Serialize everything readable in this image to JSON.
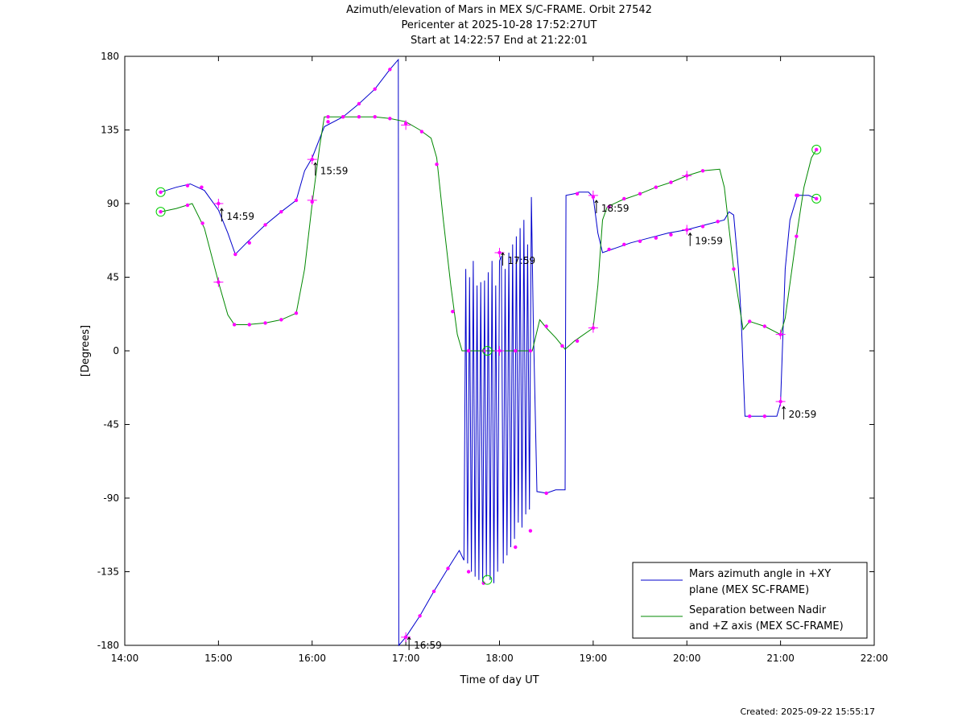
{
  "title": {
    "line1": "Azimuth/elevation of Mars in MEX S/C-FRAME.  Orbit 27542",
    "line2": "Pericenter at 2025-10-28 17:52:27UT",
    "line3": "Start at 14:22:57 End at 21:22:01"
  },
  "created": "Created: 2025-09-22 15:55:17",
  "chart_data": {
    "type": "line",
    "xlabel": "Time of day UT",
    "ylabel": "[Degrees]",
    "xlim": [
      14.0,
      22.0
    ],
    "ylim": [
      -180,
      180
    ],
    "xticks": [
      14,
      15,
      16,
      17,
      18,
      19,
      20,
      21,
      22
    ],
    "xtick_labels": [
      "14:00",
      "15:00",
      "16:00",
      "17:00",
      "18:00",
      "19:00",
      "20:00",
      "21:00",
      "22:00"
    ],
    "yticks": [
      180,
      135,
      90,
      45,
      0,
      -45,
      -90,
      -135,
      -180
    ],
    "ytick_labels": [
      "180",
      "135",
      "90",
      "45",
      "0",
      "-45",
      "-90",
      "-135",
      "-180"
    ],
    "grid": false,
    "legend_position": "bottom-right",
    "series": [
      {
        "name": "Mars azimuth angle in +XY plane (MEX SC-FRAME)",
        "legend_lines": [
          "Mars azimuth angle in +XY",
          "plane (MEX SC-FRAME)"
        ],
        "color": "#0000cc",
        "points": [
          [
            14.383,
            97
          ],
          [
            14.55,
            100
          ],
          [
            14.7,
            102
          ],
          [
            14.85,
            98
          ],
          [
            15.0,
            86
          ],
          [
            15.1,
            72
          ],
          [
            15.18,
            59
          ],
          [
            15.3,
            66
          ],
          [
            15.5,
            77
          ],
          [
            15.67,
            85
          ],
          [
            15.83,
            92
          ],
          [
            15.92,
            110
          ],
          [
            16.0,
            118
          ],
          [
            16.13,
            137
          ],
          [
            16.33,
            143
          ],
          [
            16.5,
            151
          ],
          [
            16.67,
            160
          ],
          [
            16.83,
            172
          ],
          [
            16.92,
            178
          ],
          [
            16.925,
            -180
          ],
          [
            17.0,
            -175
          ],
          [
            17.15,
            -162
          ],
          [
            17.3,
            -147
          ],
          [
            17.45,
            -133
          ],
          [
            17.57,
            -122
          ],
          [
            17.62,
            -128
          ],
          [
            17.64,
            50
          ],
          [
            17.66,
            -130
          ],
          [
            17.68,
            45
          ],
          [
            17.7,
            -135
          ],
          [
            17.72,
            55
          ],
          [
            17.74,
            -138
          ],
          [
            17.76,
            40
          ],
          [
            17.78,
            -140
          ],
          [
            17.8,
            42
          ],
          [
            17.82,
            -142
          ],
          [
            17.84,
            43
          ],
          [
            17.86,
            -138
          ],
          [
            17.88,
            48
          ],
          [
            17.9,
            -140
          ],
          [
            17.92,
            55
          ],
          [
            17.94,
            -142
          ],
          [
            17.96,
            40
          ],
          [
            17.98,
            -135
          ],
          [
            18.0,
            55
          ],
          [
            18.02,
            58
          ],
          [
            18.04,
            -130
          ],
          [
            18.06,
            50
          ],
          [
            18.08,
            -125
          ],
          [
            18.1,
            60
          ],
          [
            18.12,
            -120
          ],
          [
            18.14,
            65
          ],
          [
            18.16,
            -115
          ],
          [
            18.18,
            70
          ],
          [
            18.2,
            -105
          ],
          [
            18.22,
            75
          ],
          [
            18.24,
            -108
          ],
          [
            18.26,
            80
          ],
          [
            18.28,
            -100
          ],
          [
            18.3,
            65
          ],
          [
            18.32,
            -97
          ],
          [
            18.34,
            94
          ],
          [
            18.36,
            20
          ],
          [
            18.4,
            -86
          ],
          [
            18.5,
            -87
          ],
          [
            18.6,
            -85
          ],
          [
            18.7,
            -85
          ],
          [
            18.71,
            95
          ],
          [
            18.8,
            96
          ],
          [
            18.85,
            97
          ],
          [
            18.95,
            97
          ],
          [
            19.0,
            94
          ],
          [
            19.05,
            72
          ],
          [
            19.1,
            60
          ],
          [
            19.2,
            62
          ],
          [
            19.4,
            66
          ],
          [
            19.6,
            69
          ],
          [
            19.8,
            72
          ],
          [
            20.0,
            74
          ],
          [
            20.2,
            77
          ],
          [
            20.4,
            80
          ],
          [
            20.45,
            85
          ],
          [
            20.5,
            83
          ],
          [
            20.55,
            50
          ],
          [
            20.58,
            20
          ],
          [
            20.62,
            -40
          ],
          [
            20.7,
            -40
          ],
          [
            20.8,
            -40
          ],
          [
            20.9,
            -40
          ],
          [
            20.96,
            -40
          ],
          [
            21.0,
            -32
          ],
          [
            21.05,
            50
          ],
          [
            21.1,
            80
          ],
          [
            21.18,
            95
          ],
          [
            21.3,
            95
          ],
          [
            21.383,
            93
          ]
        ],
        "marker_points": [
          [
            14.383,
            97
          ],
          [
            14.67,
            101
          ],
          [
            14.82,
            100
          ],
          [
            15.0,
            90
          ],
          [
            15.18,
            59
          ],
          [
            15.33,
            66
          ],
          [
            15.5,
            77
          ],
          [
            15.67,
            85
          ],
          [
            15.83,
            92
          ],
          [
            16.0,
            117
          ],
          [
            16.17,
            143
          ],
          [
            16.33,
            143
          ],
          [
            16.5,
            151
          ],
          [
            16.67,
            160
          ],
          [
            16.83,
            172
          ],
          [
            17.0,
            -175
          ],
          [
            17.15,
            -162
          ],
          [
            17.3,
            -147
          ],
          [
            17.45,
            -133
          ],
          [
            17.67,
            -135
          ],
          [
            17.83,
            -142
          ],
          [
            18.0,
            60
          ],
          [
            18.17,
            -120
          ],
          [
            18.33,
            -110
          ],
          [
            18.5,
            -87
          ],
          [
            18.83,
            96
          ],
          [
            19.0,
            94
          ],
          [
            19.17,
            62
          ],
          [
            19.33,
            65
          ],
          [
            19.5,
            67
          ],
          [
            19.67,
            69
          ],
          [
            19.83,
            71
          ],
          [
            20.0,
            74
          ],
          [
            20.17,
            76
          ],
          [
            20.33,
            79
          ],
          [
            20.67,
            -40
          ],
          [
            20.83,
            -40
          ],
          [
            21.0,
            -31
          ],
          [
            21.17,
            95
          ],
          [
            21.383,
            93
          ]
        ]
      },
      {
        "name": "Separation between Nadir and +Z axis (MEX SC-FRAME)",
        "legend_lines": [
          "Separation between Nadir",
          "and +Z axis (MEX SC-FRAME)"
        ],
        "color": "#008800",
        "points": [
          [
            14.383,
            85
          ],
          [
            14.55,
            87
          ],
          [
            14.72,
            90
          ],
          [
            14.85,
            75
          ],
          [
            15.0,
            42
          ],
          [
            15.1,
            22
          ],
          [
            15.17,
            16
          ],
          [
            15.3,
            16
          ],
          [
            15.5,
            17
          ],
          [
            15.67,
            19
          ],
          [
            15.83,
            23
          ],
          [
            15.92,
            50
          ],
          [
            16.0,
            90
          ],
          [
            16.08,
            125
          ],
          [
            16.13,
            143
          ],
          [
            16.3,
            143
          ],
          [
            16.5,
            143
          ],
          [
            16.67,
            143
          ],
          [
            16.83,
            142
          ],
          [
            17.0,
            140
          ],
          [
            17.15,
            135
          ],
          [
            17.27,
            130
          ],
          [
            17.33,
            118
          ],
          [
            17.4,
            80
          ],
          [
            17.48,
            40
          ],
          [
            17.55,
            10
          ],
          [
            17.6,
            0
          ],
          [
            17.7,
            0
          ],
          [
            17.85,
            0
          ],
          [
            18.0,
            0
          ],
          [
            18.2,
            0
          ],
          [
            18.35,
            0
          ],
          [
            18.43,
            19
          ],
          [
            18.5,
            14
          ],
          [
            18.6,
            8
          ],
          [
            18.7,
            1
          ],
          [
            18.8,
            6
          ],
          [
            19.0,
            14
          ],
          [
            19.05,
            40
          ],
          [
            19.1,
            80
          ],
          [
            19.15,
            88
          ],
          [
            19.3,
            92
          ],
          [
            19.5,
            96
          ],
          [
            19.67,
            100
          ],
          [
            19.83,
            103
          ],
          [
            20.0,
            107
          ],
          [
            20.17,
            110
          ],
          [
            20.35,
            111
          ],
          [
            20.4,
            100
          ],
          [
            20.5,
            50
          ],
          [
            20.6,
            13
          ],
          [
            20.67,
            18
          ],
          [
            20.83,
            15
          ],
          [
            21.0,
            10
          ],
          [
            21.05,
            20
          ],
          [
            21.17,
            70
          ],
          [
            21.25,
            100
          ],
          [
            21.33,
            118
          ],
          [
            21.383,
            123
          ]
        ],
        "marker_points": [
          [
            14.383,
            85
          ],
          [
            14.67,
            89
          ],
          [
            14.83,
            78
          ],
          [
            15.0,
            42
          ],
          [
            15.17,
            16
          ],
          [
            15.33,
            16
          ],
          [
            15.5,
            17
          ],
          [
            15.67,
            19
          ],
          [
            15.83,
            23
          ],
          [
            16.0,
            91
          ],
          [
            16.17,
            140
          ],
          [
            16.33,
            143
          ],
          [
            16.5,
            143
          ],
          [
            16.67,
            143
          ],
          [
            16.83,
            142
          ],
          [
            17.0,
            139
          ],
          [
            17.17,
            134
          ],
          [
            17.33,
            114
          ],
          [
            17.5,
            24
          ],
          [
            17.67,
            0
          ],
          [
            17.83,
            0
          ],
          [
            18.0,
            0
          ],
          [
            18.17,
            0
          ],
          [
            18.33,
            0
          ],
          [
            18.5,
            15
          ],
          [
            18.67,
            3
          ],
          [
            18.83,
            6
          ],
          [
            19.0,
            14
          ],
          [
            19.17,
            88
          ],
          [
            19.33,
            93
          ],
          [
            19.5,
            96
          ],
          [
            19.67,
            100
          ],
          [
            19.83,
            103
          ],
          [
            20.0,
            107
          ],
          [
            20.17,
            110
          ],
          [
            20.5,
            50
          ],
          [
            20.67,
            18
          ],
          [
            20.83,
            15
          ],
          [
            21.0,
            10
          ],
          [
            21.17,
            70
          ],
          [
            21.183,
            95
          ],
          [
            21.383,
            123
          ]
        ]
      }
    ],
    "time_labels": [
      {
        "label": "14:59",
        "x": 15.0,
        "y": 84
      },
      {
        "label": "15:59",
        "x": 16.0,
        "y": 112
      },
      {
        "label": "16:59",
        "x": 17.0,
        "y": -178
      },
      {
        "label": "17:59",
        "x": 18.0,
        "y": 57
      },
      {
        "label": "18:59",
        "x": 19.0,
        "y": 89
      },
      {
        "label": "19:59",
        "x": 20.0,
        "y": 69
      },
      {
        "label": "20:59",
        "x": 21.0,
        "y": -37
      }
    ],
    "cross_markers": [
      [
        15.0,
        90
      ],
      [
        15.0,
        42
      ],
      [
        16.0,
        117
      ],
      [
        16.0,
        92
      ],
      [
        17.0,
        -175
      ],
      [
        17.0,
        138
      ],
      [
        18.0,
        60
      ],
      [
        18.0,
        0
      ],
      [
        19.0,
        95
      ],
      [
        19.0,
        14
      ],
      [
        20.0,
        74
      ],
      [
        20.0,
        107
      ],
      [
        21.0,
        -31
      ],
      [
        21.0,
        10
      ]
    ],
    "circle_markers": [
      [
        14.383,
        97
      ],
      [
        14.383,
        85
      ],
      [
        17.87,
        0
      ],
      [
        17.87,
        -140
      ],
      [
        21.383,
        93
      ],
      [
        21.383,
        123
      ]
    ]
  }
}
